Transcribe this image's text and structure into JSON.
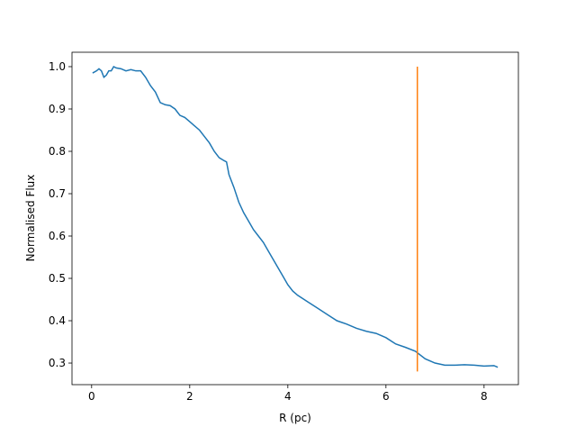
{
  "chart_data": {
    "type": "line",
    "xlabel": "R (pc)",
    "ylabel": "Normalised Flux",
    "xlim": [
      -0.4,
      8.7
    ],
    "ylim": [
      0.249,
      1.034
    ],
    "xticks": [
      0,
      2,
      4,
      6,
      8
    ],
    "yticks": [
      0.3,
      0.4,
      0.5,
      0.6,
      0.7,
      0.8,
      0.9,
      {
        "value": 1,
        "label": "1.0"
      }
    ],
    "series": [
      {
        "color": "#1f77b4",
        "x": [
          0.02,
          0.1,
          0.15,
          0.2,
          0.25,
          0.3,
          0.35,
          0.4,
          0.45,
          0.5,
          0.6,
          0.7,
          0.8,
          0.9,
          1.0,
          1.1,
          1.2,
          1.3,
          1.4,
          1.5,
          1.6,
          1.7,
          1.8,
          1.9,
          2.0,
          2.1,
          2.2,
          2.3,
          2.4,
          2.5,
          2.6,
          2.7,
          2.75,
          2.8,
          2.9,
          3.0,
          3.1,
          3.2,
          3.3,
          3.4,
          3.5,
          3.6,
          3.7,
          3.8,
          3.9,
          4.0,
          4.1,
          4.2,
          4.4,
          4.6,
          4.8,
          5.0,
          5.2,
          5.4,
          5.6,
          5.8,
          6.0,
          6.2,
          6.4,
          6.6,
          6.8,
          7.0,
          7.2,
          7.4,
          7.6,
          7.8,
          8.0,
          8.2,
          8.28
        ],
        "values": [
          0.985,
          0.99,
          0.995,
          0.99,
          0.975,
          0.98,
          0.99,
          0.99,
          1.0,
          0.997,
          0.995,
          0.99,
          0.993,
          0.99,
          0.99,
          0.975,
          0.955,
          0.94,
          0.915,
          0.91,
          0.908,
          0.9,
          0.885,
          0.88,
          0.87,
          0.86,
          0.85,
          0.835,
          0.82,
          0.8,
          0.785,
          0.778,
          0.775,
          0.745,
          0.715,
          0.68,
          0.655,
          0.635,
          0.615,
          0.6,
          0.585,
          0.565,
          0.545,
          0.525,
          0.505,
          0.485,
          0.47,
          0.46,
          0.445,
          0.43,
          0.415,
          0.4,
          0.392,
          0.382,
          0.375,
          0.37,
          0.36,
          0.345,
          0.337,
          0.328,
          0.31,
          0.3,
          0.295,
          0.295,
          0.296,
          0.295,
          0.293,
          0.294,
          0.29
        ]
      },
      {
        "color": "#ff7f0e",
        "x": [
          6.64,
          6.64
        ],
        "values": [
          0.28,
          1.0
        ]
      }
    ]
  }
}
